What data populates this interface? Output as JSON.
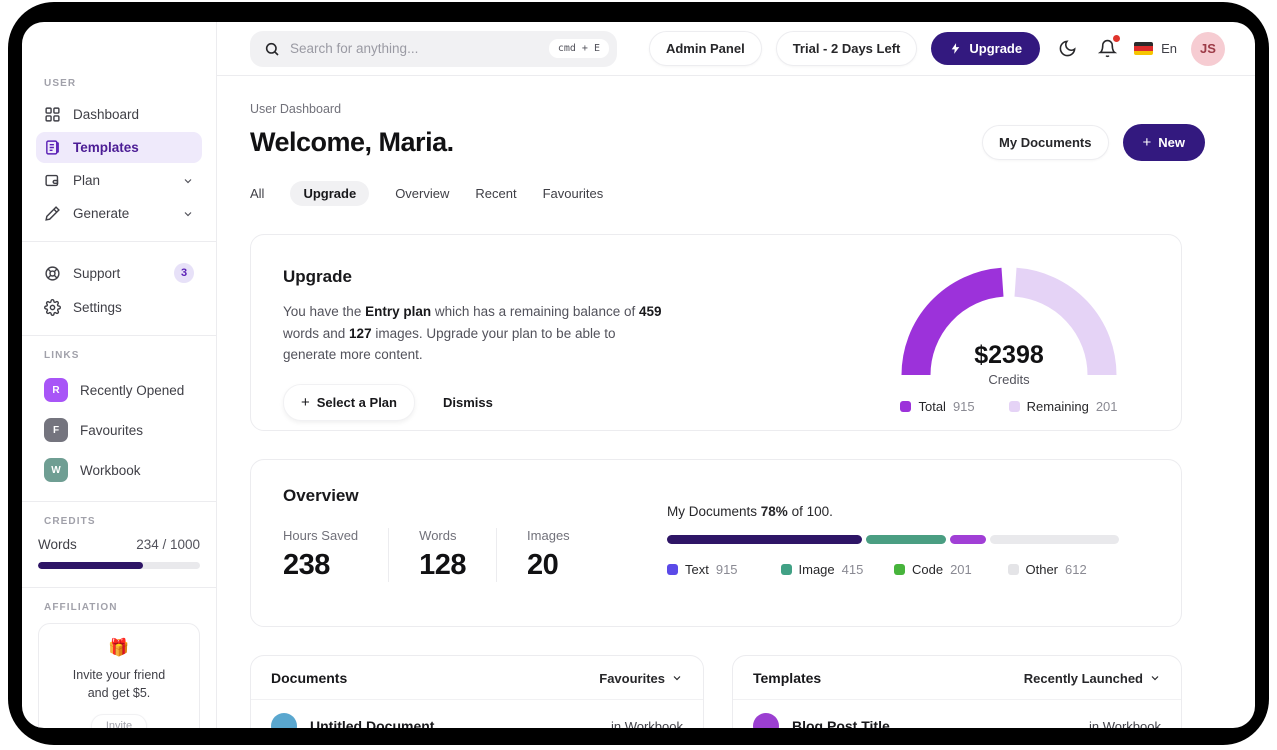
{
  "app": {
    "sidebar": {
      "user_section_label": "USER",
      "nav_items": [
        {
          "label": "Dashboard",
          "icon": "grid-icon"
        },
        {
          "label": "Templates",
          "icon": "templates-icon",
          "active": true
        },
        {
          "label": "Plan",
          "icon": "wallet-icon",
          "expandable": true
        },
        {
          "label": "Generate",
          "icon": "pencil-icon",
          "expandable": true
        }
      ],
      "secondary_items": [
        {
          "label": "Support",
          "icon": "lifebuoy-icon",
          "badge": "3"
        },
        {
          "label": "Settings",
          "icon": "gear-icon"
        }
      ],
      "links_section_label": "LINKS",
      "links": [
        {
          "label": "Recently Opened",
          "initial": "R",
          "color": "#a855f7"
        },
        {
          "label": "Favourites",
          "initial": "F",
          "color": "#74747e"
        },
        {
          "label": "Workbook",
          "initial": "W",
          "color": "#6f9e93"
        }
      ],
      "credits_section_label": "CREDITS",
      "credits": {
        "label": "Words",
        "value": "234 / 1000",
        "fill_percent": "65%",
        "fill_color": "#2e1566"
      },
      "affiliation_section_label": "AFFILIATION",
      "affiliation": {
        "emoji": "🎁",
        "line1": "Invite your friend",
        "line2": "and get $5.",
        "button_label": "Invite"
      }
    },
    "topbar": {
      "search": {
        "placeholder": "Search for anything...",
        "shortcut": "cmd + E"
      },
      "admin_panel_label": "Admin Panel",
      "trial_label": "Trial - 2 Days Left",
      "upgrade_label": "Upgrade",
      "upgrade_color": "#33197f",
      "language": "En",
      "avatar_initials": "JS"
    },
    "header": {
      "breadcrumb": "User Dashboard",
      "title": "Welcome, Maria.",
      "my_documents_label": "My Documents",
      "new_label": "New",
      "new_plus": "+",
      "new_color": "#33197f",
      "tabs": [
        "All",
        "Upgrade",
        "Overview",
        "Recent",
        "Favourites"
      ],
      "active_tab": "Upgrade"
    },
    "upgrade_card": {
      "title": "Upgrade",
      "body": {
        "p1": "You have the ",
        "b1": "Entry plan",
        "p2": " which has a remaining balance of ",
        "b2": "459",
        "p3": " words and ",
        "b3": "127",
        "p4": " images. Upgrade your plan to be able to generate more content."
      },
      "select_plan_plus": "+",
      "select_plan_label": "Select a Plan",
      "dismiss_label": "Dismiss",
      "gauge": {
        "center_value": "$2398",
        "center_label": "Credits",
        "total": {
          "label": "Total",
          "value": "915",
          "color": "#9c32da"
        },
        "remaining": {
          "label": "Remaining",
          "value": "201",
          "color": "#e5d3f6"
        }
      }
    },
    "overview_card": {
      "title": "Overview",
      "stats": [
        {
          "label": "Hours Saved",
          "value": "238"
        },
        {
          "label": "Words",
          "value": "128"
        },
        {
          "label": "Images",
          "value": "20"
        }
      ],
      "documents_progress": {
        "prefix": "My Documents ",
        "percent": "78%",
        "suffix": " of 100."
      },
      "bar_segments": [
        {
          "name": "Text",
          "color": "#2e1566",
          "width": "43%"
        },
        {
          "name": "Image",
          "color": "#4a9e82",
          "width": "17.5%"
        },
        {
          "name": "Code",
          "color": "#a13fd6",
          "width": "8%"
        },
        {
          "name": "Other",
          "color": "#e9e9ec",
          "width": "28.5%"
        }
      ],
      "legend": [
        {
          "label": "Text",
          "value": "915",
          "color": "#5b4ae8"
        },
        {
          "label": "Image",
          "value": "415",
          "color": "#41a185"
        },
        {
          "label": "Code",
          "value": "201",
          "color": "#47b43c"
        },
        {
          "label": "Other",
          "value": "612",
          "color": "#e4e4e7"
        }
      ]
    },
    "documents_card": {
      "title": "Documents",
      "filter_label": "Favourites",
      "rows": [
        {
          "name": "Untitled Document",
          "location": "in Workbook",
          "avatar_color": "#5aa7cf"
        }
      ]
    },
    "templates_card": {
      "title": "Templates",
      "filter_label": "Recently Launched",
      "rows": [
        {
          "name": "Blog Post Title",
          "location": "in Workbook",
          "avatar_color": "#9b3fd1"
        }
      ]
    }
  },
  "chart_data": [
    {
      "type": "pie",
      "shape": "half-donut-gauge",
      "title": "Credits",
      "center_value": "$2398",
      "center_label": "Credits",
      "series": [
        {
          "name": "Total",
          "value": 915,
          "color": "#9c32da"
        },
        {
          "name": "Remaining",
          "value": 201,
          "color": "#e5d3f6"
        }
      ],
      "legend_position": "bottom"
    },
    {
      "type": "bar",
      "shape": "stacked-horizontal-progress",
      "title": "My Documents 78% of 100",
      "percent_complete": 78,
      "max": 100,
      "series": [
        {
          "name": "Text",
          "value": 915,
          "color": "#2e1566"
        },
        {
          "name": "Image",
          "value": 415,
          "color": "#4a9e82"
        },
        {
          "name": "Code",
          "value": 201,
          "color": "#a13fd6"
        },
        {
          "name": "Other",
          "value": 612,
          "color": "#e9e9ec"
        }
      ],
      "legend_position": "bottom"
    }
  ]
}
